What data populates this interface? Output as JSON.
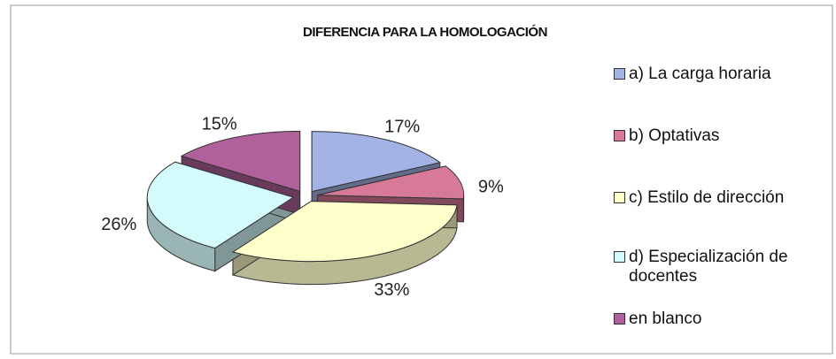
{
  "chart_data": {
    "type": "pie3d",
    "title": "DIFERENCIA PARA LA HOMOLOGACIÓN",
    "categories": [
      "a) La carga horaria",
      "b) Optativas",
      "c) Estilo de dirección",
      "d) Especialización de docentes",
      "en blanco"
    ],
    "values": [
      17,
      9,
      33,
      26,
      15
    ],
    "value_labels": [
      "17%",
      "9%",
      "33%",
      "26%",
      "15%"
    ],
    "colors": [
      "#a3b3e6",
      "#d77a98",
      "#ffffcc",
      "#d4fbfb",
      "#b0609a"
    ],
    "legend": "right"
  }
}
